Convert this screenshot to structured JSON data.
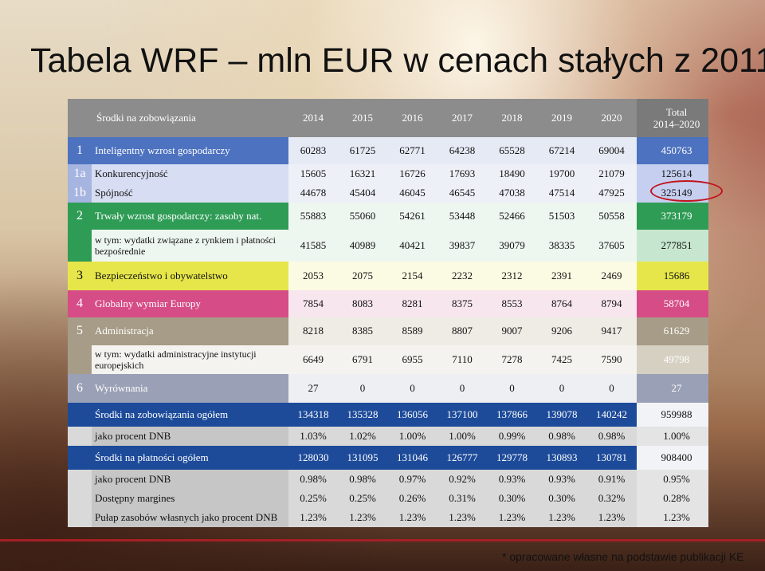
{
  "title": "Tabela WRF – mln EUR w cenach stałych z 2011",
  "footnote": "* opracowane własne na podstawie publikacji KE",
  "header": {
    "label": "Środki na zobowiązania",
    "years": [
      "2014",
      "2015",
      "2016",
      "2017",
      "2018",
      "2019",
      "2020"
    ],
    "total_line1": "Total",
    "total_line2": "2014–2020"
  },
  "rows": [
    {
      "idx": "1",
      "label": "Inteligentny wzrost gospodarczy",
      "values": [
        "60283",
        "61725",
        "62771",
        "64238",
        "65528",
        "67214",
        "69004"
      ],
      "total": "450763"
    },
    {
      "idx": "1a",
      "label": "Konkurencyjność",
      "values": [
        "15605",
        "16321",
        "16726",
        "17693",
        "18490",
        "19700",
        "21079"
      ],
      "total": "125614"
    },
    {
      "idx": "1b",
      "label": "Spójność",
      "values": [
        "44678",
        "45404",
        "46045",
        "46545",
        "47038",
        "47514",
        "47925"
      ],
      "total": "325149"
    },
    {
      "idx": "2",
      "label": "Trwały wzrost gospodarczy: zasoby nat.",
      "values": [
        "55883",
        "55060",
        "54261",
        "53448",
        "52466",
        "51503",
        "50558"
      ],
      "total": "373179"
    },
    {
      "idx": "",
      "label": "w tym: wydatki związane z rynkiem i płatności bezpośrednie",
      "values": [
        "41585",
        "40989",
        "40421",
        "39837",
        "39079",
        "38335",
        "37605"
      ],
      "total": "277851"
    },
    {
      "idx": "3",
      "label": "Bezpieczeństwo i obywatelstwo",
      "values": [
        "2053",
        "2075",
        "2154",
        "2232",
        "2312",
        "2391",
        "2469"
      ],
      "total": "15686"
    },
    {
      "idx": "4",
      "label": "Globalny wymiar Europy",
      "values": [
        "7854",
        "8083",
        "8281",
        "8375",
        "8553",
        "8764",
        "8794"
      ],
      "total": "58704"
    },
    {
      "idx": "5",
      "label": "Administracja",
      "values": [
        "8218",
        "8385",
        "8589",
        "8807",
        "9007",
        "9206",
        "9417"
      ],
      "total": "61629"
    },
    {
      "idx": "",
      "label": "w tym: wydatki administracyjne instytucji europejskich",
      "values": [
        "6649",
        "6791",
        "6955",
        "7110",
        "7278",
        "7425",
        "7590"
      ],
      "total": "49798"
    },
    {
      "idx": "6",
      "label": "Wyrównania",
      "values": [
        "27",
        "0",
        "0",
        "0",
        "0",
        "0",
        "0"
      ],
      "total": "27"
    },
    {
      "idx": "",
      "label": "Środki na zobowiązania ogółem",
      "values": [
        "134318",
        "135328",
        "136056",
        "137100",
        "137866",
        "139078",
        "140242"
      ],
      "total": "959988"
    },
    {
      "idx": "",
      "label": "jako procent DNB",
      "values": [
        "1.03%",
        "1.02%",
        "1.00%",
        "1.00%",
        "0.99%",
        "0.98%",
        "0.98%"
      ],
      "total": "1.00%"
    },
    {
      "idx": "",
      "label": "Środki na płatności ogółem",
      "values": [
        "128030",
        "131095",
        "131046",
        "126777",
        "129778",
        "130893",
        "130781"
      ],
      "total": "908400"
    },
    {
      "idx": "",
      "label": "jako procent DNB",
      "values": [
        "0.98%",
        "0.98%",
        "0.97%",
        "0.92%",
        "0.93%",
        "0.93%",
        "0.91%"
      ],
      "total": "0.95%"
    },
    {
      "idx": "",
      "label": "Dostępny margines",
      "values": [
        "0.25%",
        "0.25%",
        "0.26%",
        "0.31%",
        "0.30%",
        "0.30%",
        "0.32%"
      ],
      "total": "0.28%"
    },
    {
      "idx": "",
      "label": "Pułap zasobów własnych jako procent DNB",
      "values": [
        "1.23%",
        "1.23%",
        "1.23%",
        "1.23%",
        "1.23%",
        "1.23%",
        "1.23%"
      ],
      "total": "1.23%"
    }
  ]
}
